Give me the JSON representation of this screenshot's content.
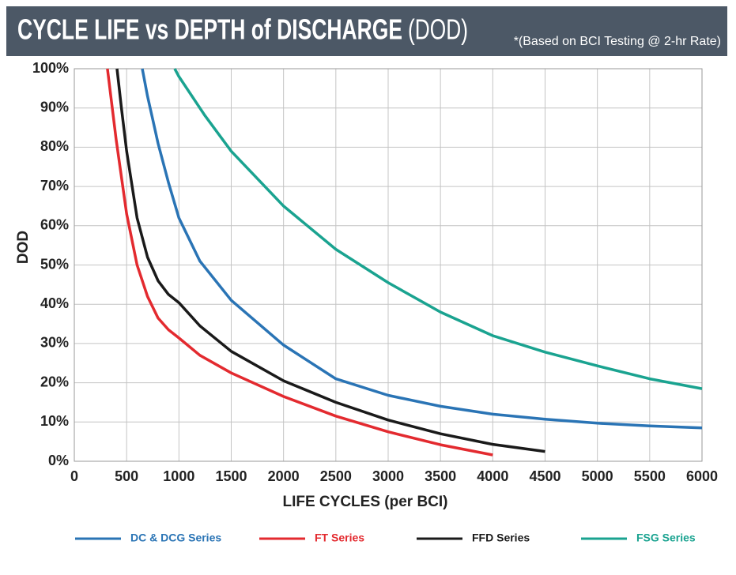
{
  "chart_data": {
    "type": "line",
    "title": "CYCLE LIFE vs DEPTH of DISCHARGE",
    "title_abbreviation": "(DOD)",
    "subtitle": "*(Based on BCI Testing @ 2-hr Rate)",
    "xlabel": "LIFE CYCLES (per BCI)",
    "ylabel": "DOD",
    "xlim": [
      0,
      6000
    ],
    "xticks": [
      0,
      500,
      1000,
      1500,
      2000,
      2500,
      3000,
      3500,
      4000,
      4500,
      5000,
      5500,
      6000
    ],
    "ylim": [
      0,
      100
    ],
    "yticks": [
      {
        "value": 0,
        "label": "0%"
      },
      {
        "value": 10,
        "label": "10%"
      },
      {
        "value": 20,
        "label": "20%"
      },
      {
        "value": 30,
        "label": "30%"
      },
      {
        "value": 40,
        "label": "40%"
      },
      {
        "value": 50,
        "label": "50%"
      },
      {
        "value": 60,
        "label": "60%"
      },
      {
        "value": 70,
        "label": "70%"
      },
      {
        "value": 80,
        "label": "80%"
      },
      {
        "value": 90,
        "label": "90%"
      },
      {
        "value": 100,
        "label": "100%"
      }
    ],
    "grid": true,
    "legend": "bottom",
    "series": [
      {
        "name": "DC & DCG Series",
        "color": "#2a74b5",
        "x": [
          650,
          700,
          750,
          800,
          900,
          1000,
          1200,
          1500,
          2000,
          2500,
          3000,
          3500,
          4000,
          4500,
          5000,
          5500,
          6000
        ],
        "values": [
          100,
          93,
          87,
          81,
          71,
          62,
          51,
          41,
          29.6,
          21,
          16.8,
          14,
          12,
          10.7,
          9.7,
          9,
          8.5
        ]
      },
      {
        "name": "FT Series",
        "color": "#e32a2f",
        "x": [
          317,
          400,
          500,
          600,
          700,
          800,
          900,
          1000,
          1200,
          1500,
          2000,
          2500,
          3000,
          3500,
          4000
        ],
        "values": [
          100,
          82,
          63,
          50,
          42,
          36.5,
          33.5,
          31.4,
          27,
          22.5,
          16.5,
          11.5,
          7.5,
          4.2,
          1.6
        ],
        "value_labels": null
      },
      {
        "name": "FFD Series",
        "color": "#1a1a1a",
        "x": [
          408,
          450,
          500,
          600,
          700,
          800,
          900,
          1000,
          1200,
          1500,
          2000,
          2500,
          3000,
          3500,
          4000,
          4500
        ],
        "values": [
          100,
          90,
          79,
          62,
          52,
          46,
          42.5,
          40.4,
          34.5,
          28,
          20.5,
          15,
          10.5,
          7,
          4.3,
          2.5
        ]
      },
      {
        "name": "FSG Series",
        "color": "#1aa390",
        "x": [
          960,
          1000,
          1250,
          1500,
          2000,
          2500,
          3000,
          3500,
          4000,
          4500,
          5000,
          5500,
          6000
        ],
        "values": [
          100,
          98,
          88,
          79,
          65,
          54,
          45.5,
          38,
          32,
          27.8,
          24.3,
          21,
          18.5
        ]
      }
    ]
  }
}
